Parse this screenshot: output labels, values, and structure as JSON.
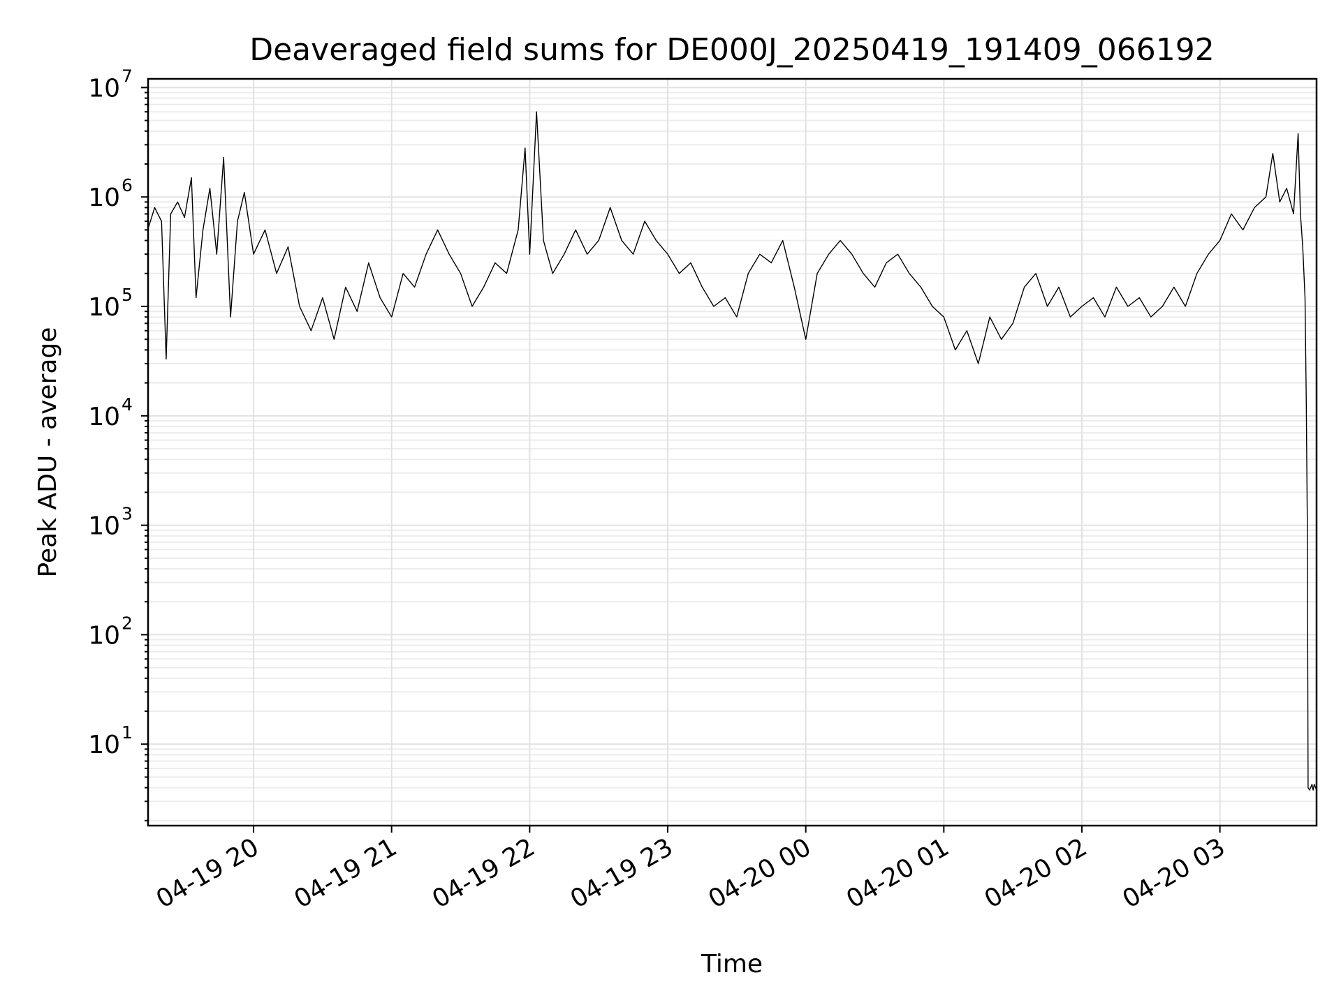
{
  "chart_data": {
    "type": "line",
    "title": "Deaveraged field sums for DE000J_20250419_191409_066192",
    "xlabel": "Time",
    "ylabel": "Peak ADU - average",
    "yscale": "log",
    "ylim": [
      1.8,
      12000000
    ],
    "xlim": [
      "2025-04-19 19:14:09",
      "2025-04-20 03:42:00"
    ],
    "grid": true,
    "line_color": "#000000",
    "x_ticks": [
      {
        "time": "2025-04-19 20:00",
        "label": "04-19 20"
      },
      {
        "time": "2025-04-19 21:00",
        "label": "04-19 21"
      },
      {
        "time": "2025-04-19 22:00",
        "label": "04-19 22"
      },
      {
        "time": "2025-04-19 23:00",
        "label": "04-19 23"
      },
      {
        "time": "2025-04-20 00:00",
        "label": "04-20 00"
      },
      {
        "time": "2025-04-20 01:00",
        "label": "04-20 01"
      },
      {
        "time": "2025-04-20 02:00",
        "label": "04-20 02"
      },
      {
        "time": "2025-04-20 03:00",
        "label": "04-20 03"
      }
    ],
    "y_ticks": [
      {
        "value": 10,
        "base": "10",
        "exp": "1"
      },
      {
        "value": 100,
        "base": "10",
        "exp": "2"
      },
      {
        "value": 1000,
        "base": "10",
        "exp": "3"
      },
      {
        "value": 10000,
        "base": "10",
        "exp": "4"
      },
      {
        "value": 100000,
        "base": "10",
        "exp": "5"
      },
      {
        "value": 1000000,
        "base": "10",
        "exp": "6"
      },
      {
        "value": 10000000,
        "base": "10",
        "exp": "7"
      }
    ],
    "series": [
      {
        "points": [
          [
            "2025-04-19 19:14",
            500000
          ],
          [
            "2025-04-19 19:17",
            800000
          ],
          [
            "2025-04-19 19:20",
            600000
          ],
          [
            "2025-04-19 19:22",
            33000
          ],
          [
            "2025-04-19 19:24",
            700000
          ],
          [
            "2025-04-19 19:27",
            900000
          ],
          [
            "2025-04-19 19:30",
            650000
          ],
          [
            "2025-04-19 19:33",
            1500000
          ],
          [
            "2025-04-19 19:35",
            120000
          ],
          [
            "2025-04-19 19:38",
            500000
          ],
          [
            "2025-04-19 19:41",
            1200000
          ],
          [
            "2025-04-19 19:44",
            300000
          ],
          [
            "2025-04-19 19:47",
            2300000
          ],
          [
            "2025-04-19 19:50",
            80000
          ],
          [
            "2025-04-19 19:53",
            600000
          ],
          [
            "2025-04-19 19:56",
            1100000
          ],
          [
            "2025-04-19 20:00",
            300000
          ],
          [
            "2025-04-19 20:05",
            500000
          ],
          [
            "2025-04-19 20:10",
            200000
          ],
          [
            "2025-04-19 20:15",
            350000
          ],
          [
            "2025-04-19 20:20",
            100000
          ],
          [
            "2025-04-19 20:25",
            60000
          ],
          [
            "2025-04-19 20:30",
            120000
          ],
          [
            "2025-04-19 20:35",
            50000
          ],
          [
            "2025-04-19 20:40",
            150000
          ],
          [
            "2025-04-19 20:45",
            90000
          ],
          [
            "2025-04-19 20:50",
            250000
          ],
          [
            "2025-04-19 20:55",
            120000
          ],
          [
            "2025-04-19 21:00",
            80000
          ],
          [
            "2025-04-19 21:05",
            200000
          ],
          [
            "2025-04-19 21:10",
            150000
          ],
          [
            "2025-04-19 21:15",
            300000
          ],
          [
            "2025-04-19 21:20",
            500000
          ],
          [
            "2025-04-19 21:25",
            300000
          ],
          [
            "2025-04-19 21:30",
            200000
          ],
          [
            "2025-04-19 21:35",
            100000
          ],
          [
            "2025-04-19 21:40",
            150000
          ],
          [
            "2025-04-19 21:45",
            250000
          ],
          [
            "2025-04-19 21:50",
            200000
          ],
          [
            "2025-04-19 21:55",
            500000
          ],
          [
            "2025-04-19 21:58",
            2800000
          ],
          [
            "2025-04-19 22:00",
            300000
          ],
          [
            "2025-04-19 22:03",
            6000000
          ],
          [
            "2025-04-19 22:06",
            400000
          ],
          [
            "2025-04-19 22:10",
            200000
          ],
          [
            "2025-04-19 22:15",
            300000
          ],
          [
            "2025-04-19 22:20",
            500000
          ],
          [
            "2025-04-19 22:25",
            300000
          ],
          [
            "2025-04-19 22:30",
            400000
          ],
          [
            "2025-04-19 22:35",
            800000
          ],
          [
            "2025-04-19 22:40",
            400000
          ],
          [
            "2025-04-19 22:45",
            300000
          ],
          [
            "2025-04-19 22:50",
            600000
          ],
          [
            "2025-04-19 22:55",
            400000
          ],
          [
            "2025-04-19 23:00",
            300000
          ],
          [
            "2025-04-19 23:05",
            200000
          ],
          [
            "2025-04-19 23:10",
            250000
          ],
          [
            "2025-04-19 23:15",
            150000
          ],
          [
            "2025-04-19 23:20",
            100000
          ],
          [
            "2025-04-19 23:25",
            120000
          ],
          [
            "2025-04-19 23:30",
            80000
          ],
          [
            "2025-04-19 23:35",
            200000
          ],
          [
            "2025-04-19 23:40",
            300000
          ],
          [
            "2025-04-19 23:45",
            250000
          ],
          [
            "2025-04-19 23:50",
            400000
          ],
          [
            "2025-04-19 23:55",
            150000
          ],
          [
            "2025-04-20 00:00",
            50000
          ],
          [
            "2025-04-20 00:05",
            200000
          ],
          [
            "2025-04-20 00:10",
            300000
          ],
          [
            "2025-04-20 00:15",
            400000
          ],
          [
            "2025-04-20 00:20",
            300000
          ],
          [
            "2025-04-20 00:25",
            200000
          ],
          [
            "2025-04-20 00:30",
            150000
          ],
          [
            "2025-04-20 00:35",
            250000
          ],
          [
            "2025-04-20 00:40",
            300000
          ],
          [
            "2025-04-20 00:45",
            200000
          ],
          [
            "2025-04-20 00:50",
            150000
          ],
          [
            "2025-04-20 00:55",
            100000
          ],
          [
            "2025-04-20 01:00",
            80000
          ],
          [
            "2025-04-20 01:05",
            40000
          ],
          [
            "2025-04-20 01:10",
            60000
          ],
          [
            "2025-04-20 01:15",
            30000
          ],
          [
            "2025-04-20 01:20",
            80000
          ],
          [
            "2025-04-20 01:25",
            50000
          ],
          [
            "2025-04-20 01:30",
            70000
          ],
          [
            "2025-04-20 01:35",
            150000
          ],
          [
            "2025-04-20 01:40",
            200000
          ],
          [
            "2025-04-20 01:45",
            100000
          ],
          [
            "2025-04-20 01:50",
            150000
          ],
          [
            "2025-04-20 01:55",
            80000
          ],
          [
            "2025-04-20 02:00",
            100000
          ],
          [
            "2025-04-20 02:05",
            120000
          ],
          [
            "2025-04-20 02:10",
            80000
          ],
          [
            "2025-04-20 02:15",
            150000
          ],
          [
            "2025-04-20 02:20",
            100000
          ],
          [
            "2025-04-20 02:25",
            120000
          ],
          [
            "2025-04-20 02:30",
            80000
          ],
          [
            "2025-04-20 02:35",
            100000
          ],
          [
            "2025-04-20 02:40",
            150000
          ],
          [
            "2025-04-20 02:45",
            100000
          ],
          [
            "2025-04-20 02:50",
            200000
          ],
          [
            "2025-04-20 02:55",
            300000
          ],
          [
            "2025-04-20 03:00",
            400000
          ],
          [
            "2025-04-20 03:05",
            700000
          ],
          [
            "2025-04-20 03:10",
            500000
          ],
          [
            "2025-04-20 03:15",
            800000
          ],
          [
            "2025-04-20 03:20",
            1000000
          ],
          [
            "2025-04-20 03:23",
            2500000
          ],
          [
            "2025-04-20 03:26",
            900000
          ],
          [
            "2025-04-20 03:29",
            1200000
          ],
          [
            "2025-04-20 03:32",
            700000
          ],
          [
            "2025-04-20 03:34",
            3800000
          ],
          [
            "2025-04-20 03:35",
            700000
          ],
          [
            "2025-04-20 03:36",
            350000
          ],
          [
            "2025-04-20 03:37",
            120000
          ],
          [
            "2025-04-20 03:37:30",
            15000
          ],
          [
            "2025-04-20 03:38",
            1000
          ],
          [
            "2025-04-20 03:38:20",
            4
          ],
          [
            "2025-04-20 03:39",
            3.8
          ],
          [
            "2025-04-20 03:40",
            4.3
          ],
          [
            "2025-04-20 03:40:30",
            3.8
          ],
          [
            "2025-04-20 03:41",
            4.3
          ],
          [
            "2025-04-20 03:42",
            3.8
          ]
        ]
      }
    ]
  }
}
